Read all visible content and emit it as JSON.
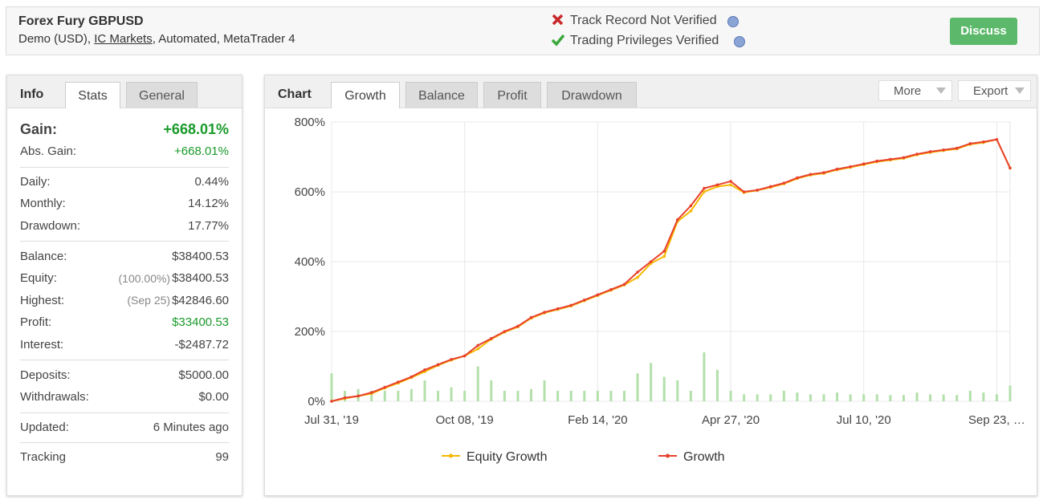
{
  "header": {
    "title": "Forex Fury GBPUSD",
    "subtitle": [
      "Demo (USD), ",
      "IC Markets",
      ", Automated, MetaTrader 4"
    ],
    "status": [
      {
        "label": "Track Record Not Verified",
        "verified": false
      },
      {
        "label": "Trading Privileges Verified",
        "verified": true
      }
    ],
    "button": "Discuss"
  },
  "info_panel": {
    "label": "Info",
    "tabs": [
      "Stats",
      "General"
    ],
    "active_tab": 0,
    "groups": [
      [
        {
          "label": "Gain:",
          "value": "+668.01%",
          "big": true,
          "positive": true
        },
        {
          "label": "Abs. Gain:",
          "value": "+668.01%",
          "positive": true
        }
      ],
      [
        {
          "label": "Daily:",
          "value": "0.44%"
        },
        {
          "label": "Monthly:",
          "value": "14.12%"
        },
        {
          "label": "Drawdown:",
          "value": "17.77%"
        }
      ],
      [
        {
          "label": "Balance:",
          "value": "$38400.53"
        },
        {
          "label": "Equity:",
          "note": "(100.00%)",
          "value": "$38400.53"
        },
        {
          "label": "Highest:",
          "note": "(Sep 25)",
          "value": "$42846.60"
        },
        {
          "label": "Profit:",
          "value": "$33400.53",
          "positive": true
        },
        {
          "label": "Interest:",
          "value": "-$2487.72"
        }
      ],
      [
        {
          "label": "Deposits:",
          "value": "$5000.00"
        },
        {
          "label": "Withdrawals:",
          "value": "$0.00"
        }
      ],
      [
        {
          "label": "Updated:",
          "value": "6 Minutes ago"
        }
      ],
      [
        {
          "label": "Tracking",
          "value": "99"
        }
      ]
    ]
  },
  "chart_panel": {
    "label": "Chart",
    "tabs": [
      "Growth",
      "Balance",
      "Profit",
      "Drawdown"
    ],
    "active_tab": 0,
    "buttons": [
      "More",
      "Export"
    ]
  },
  "chart_data": {
    "type": "line",
    "categories": [
      "Jul 31, '19",
      null,
      null,
      null,
      null,
      null,
      null,
      null,
      null,
      null,
      "Oct 08, '19",
      null,
      null,
      null,
      null,
      null,
      null,
      null,
      null,
      null,
      "Feb 14, '20",
      null,
      null,
      null,
      null,
      null,
      null,
      null,
      null,
      null,
      "Apr 27, '20",
      null,
      null,
      null,
      null,
      null,
      null,
      null,
      null,
      null,
      "Jul 10, '20",
      null,
      null,
      null,
      null,
      null,
      null,
      null,
      null,
      null,
      "Sep 23, …",
      null
    ],
    "ylim": [
      0,
      800
    ],
    "yticks": [
      {
        "value": 0,
        "label": "0%"
      },
      {
        "value": 200,
        "label": "200%"
      },
      {
        "value": 400,
        "label": "400%"
      },
      {
        "value": 600,
        "label": "600%"
      },
      {
        "value": 800,
        "label": "800%"
      }
    ],
    "grid": true,
    "legend": "bottom",
    "series": [
      {
        "name": "Equity Growth",
        "color": "#f5b800",
        "values": [
          0,
          8,
          15,
          22,
          38,
          52,
          68,
          85,
          103,
          118,
          130,
          150,
          178,
          198,
          213,
          238,
          253,
          263,
          273,
          288,
          303,
          318,
          333,
          355,
          395,
          415,
          515,
          545,
          600,
          615,
          620,
          598,
          604,
          613,
          623,
          638,
          648,
          653,
          663,
          670,
          678,
          686,
          691,
          696,
          706,
          713,
          718,
          723,
          736,
          741,
          750,
          668
        ]
      },
      {
        "name": "Growth",
        "color": "#e8412c",
        "values": [
          0,
          10,
          15,
          25,
          40,
          55,
          70,
          90,
          105,
          120,
          130,
          160,
          180,
          200,
          215,
          240,
          255,
          265,
          275,
          290,
          305,
          320,
          335,
          370,
          400,
          430,
          520,
          560,
          610,
          620,
          630,
          600,
          605,
          615,
          625,
          640,
          650,
          655,
          665,
          672,
          680,
          688,
          693,
          698,
          708,
          715,
          720,
          725,
          738,
          743,
          750,
          668
        ]
      }
    ],
    "bars": {
      "color": "#b3e0ab",
      "values": [
        80,
        30,
        35,
        30,
        30,
        30,
        35,
        60,
        30,
        40,
        30,
        100,
        60,
        30,
        30,
        35,
        60,
        30,
        30,
        30,
        30,
        30,
        30,
        80,
        110,
        70,
        60,
        30,
        140,
        90,
        30,
        20,
        20,
        20,
        30,
        25,
        20,
        20,
        25,
        20,
        20,
        20,
        18,
        18,
        25,
        20,
        20,
        18,
        30,
        25,
        20,
        45
      ]
    }
  }
}
